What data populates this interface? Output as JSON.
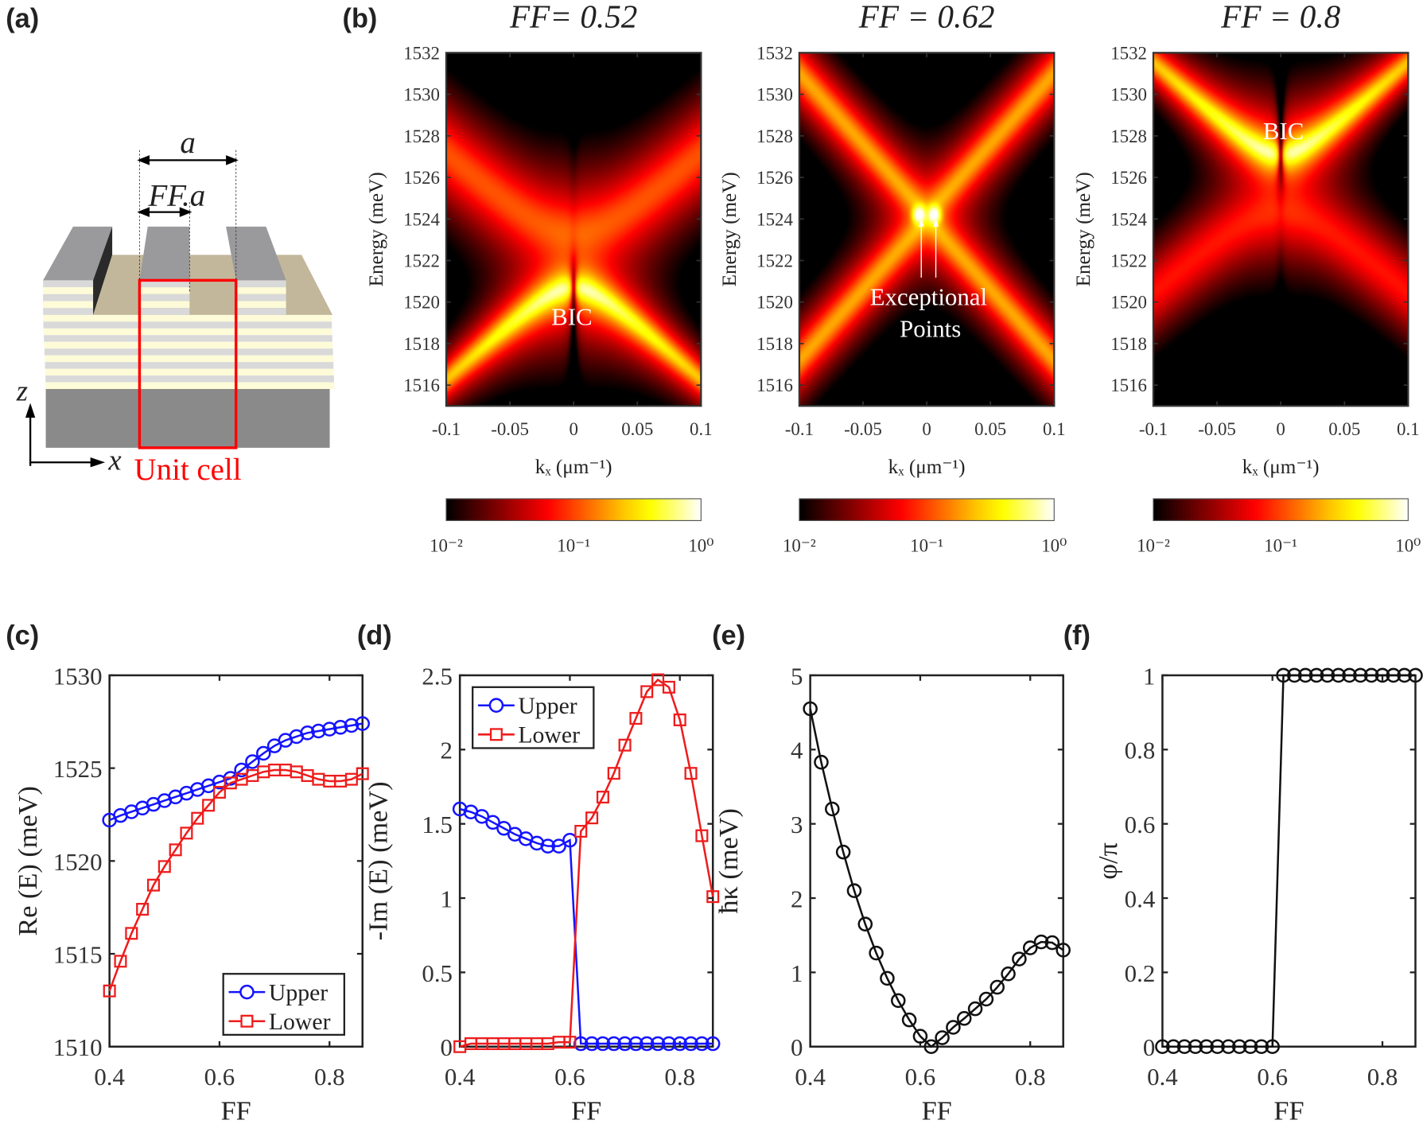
{
  "panel_labels": {
    "a": "(a)",
    "b": "(b)",
    "c": "(c)",
    "d": "(d)",
    "e": "(e)",
    "f": "(f)"
  },
  "schematic": {
    "period_label": "a",
    "fill_factor_label": "FF.a",
    "z_axis_label": "z",
    "x_axis_label": "x",
    "unit_cell_label": "Unit cell",
    "colors": {
      "ridge": "#9a9a9c",
      "ridge_side": "#2a2a2a",
      "top_surface": "#c2b79a",
      "layer_light": "#fdfbd8",
      "layer_grey": "#d9d9d9",
      "substrate": "#8a8a8a",
      "unit_cell": "#ff0000"
    }
  },
  "chart_data": [
    {
      "type": "heatmap",
      "title": "FF= 0.52",
      "xlabel": "kₓ (μm⁻¹)",
      "ylabel": "Energy (meV)",
      "xlim": [
        -0.1,
        0.1
      ],
      "ylim": [
        1515,
        1532
      ],
      "xticks": [
        -0.1,
        -0.05,
        0,
        0.05,
        0.1
      ],
      "yticks": [
        1516,
        1518,
        1520,
        1522,
        1524,
        1526,
        1528,
        1530,
        1532
      ],
      "colormap": "hot",
      "colorbar": {
        "scale": "log",
        "range": [
          0.01,
          1
        ],
        "tick_labels": [
          "10⁻²",
          "10⁻¹",
          "10⁰"
        ]
      },
      "annotations": [
        "BIC"
      ]
    },
    {
      "type": "heatmap",
      "title": "FF = 0.62",
      "xlabel": "kₓ (μm⁻¹)",
      "ylabel": "Energy (meV)",
      "xlim": [
        -0.1,
        0.1
      ],
      "ylim": [
        1515,
        1532
      ],
      "xticks": [
        -0.1,
        -0.05,
        0,
        0.05,
        0.1
      ],
      "yticks": [
        1516,
        1518,
        1520,
        1522,
        1524,
        1526,
        1528,
        1530,
        1532
      ],
      "colormap": "hot",
      "colorbar": {
        "scale": "log",
        "range": [
          0.01,
          1
        ],
        "tick_labels": [
          "10⁻²",
          "10⁻¹",
          "10⁰"
        ]
      },
      "annotations": [
        "Exceptional",
        "Points"
      ]
    },
    {
      "type": "heatmap",
      "title": "FF = 0.8",
      "xlabel": "kₓ (μm⁻¹)",
      "ylabel": "Energy (meV)",
      "xlim": [
        -0.1,
        0.1
      ],
      "ylim": [
        1515,
        1532
      ],
      "xticks": [
        -0.1,
        -0.05,
        0,
        0.05,
        0.1
      ],
      "yticks": [
        1516,
        1518,
        1520,
        1522,
        1524,
        1526,
        1528,
        1530,
        1532
      ],
      "colormap": "hot",
      "colorbar": {
        "scale": "log",
        "range": [
          0.01,
          1
        ],
        "tick_labels": [
          "10⁻²",
          "10⁻¹",
          "10⁰"
        ]
      },
      "annotations": [
        "BIC"
      ]
    },
    {
      "type": "line",
      "xlabel": "FF",
      "ylabel": "Re (E) (meV)",
      "xlim": [
        0.4,
        0.86
      ],
      "ylim": [
        1510,
        1530
      ],
      "xticks": [
        0.4,
        0.6,
        0.8
      ],
      "yticks": [
        1510,
        1515,
        1520,
        1525,
        1530
      ],
      "legend": "bottom-right",
      "x": [
        0.4,
        0.42,
        0.44,
        0.46,
        0.48,
        0.5,
        0.52,
        0.54,
        0.56,
        0.58,
        0.6,
        0.62,
        0.64,
        0.66,
        0.68,
        0.7,
        0.72,
        0.74,
        0.76,
        0.78,
        0.8,
        0.82,
        0.84,
        0.86
      ],
      "series": [
        {
          "name": "Upper",
          "color": "#1414ff",
          "marker": "circle",
          "values": [
            1522.2,
            1522.45,
            1522.65,
            1522.85,
            1523.05,
            1523.25,
            1523.45,
            1523.65,
            1523.85,
            1524.05,
            1524.25,
            1524.45,
            1524.9,
            1525.35,
            1525.8,
            1526.2,
            1526.5,
            1526.7,
            1526.9,
            1527.0,
            1527.1,
            1527.2,
            1527.3,
            1527.4
          ]
        },
        {
          "name": "Lower",
          "color": "#ee1c1c",
          "marker": "square",
          "values": [
            1513.0,
            1514.6,
            1516.1,
            1517.4,
            1518.7,
            1519.7,
            1520.6,
            1521.5,
            1522.3,
            1523.0,
            1523.7,
            1524.2,
            1524.4,
            1524.6,
            1524.8,
            1524.9,
            1524.9,
            1524.8,
            1524.6,
            1524.4,
            1524.3,
            1524.3,
            1524.4,
            1524.7
          ]
        }
      ]
    },
    {
      "type": "line",
      "xlabel": "FF",
      "ylabel": "-Im (E) (meV)",
      "xlim": [
        0.4,
        0.86
      ],
      "ylim": [
        0,
        2.5
      ],
      "xticks": [
        0.4,
        0.6,
        0.8
      ],
      "yticks": [
        0,
        0.5,
        1,
        1.5,
        2,
        2.5
      ],
      "legend": "top-left",
      "x": [
        0.4,
        0.42,
        0.44,
        0.46,
        0.48,
        0.5,
        0.52,
        0.54,
        0.56,
        0.58,
        0.6,
        0.62,
        0.64,
        0.66,
        0.68,
        0.7,
        0.72,
        0.74,
        0.76,
        0.78,
        0.8,
        0.82,
        0.84,
        0.86
      ],
      "series": [
        {
          "name": "Upper",
          "color": "#1414ff",
          "marker": "circle",
          "values": [
            1.6,
            1.58,
            1.55,
            1.51,
            1.47,
            1.43,
            1.4,
            1.37,
            1.35,
            1.35,
            1.39,
            0.02,
            0.02,
            0.02,
            0.02,
            0.02,
            0.02,
            0.02,
            0.02,
            0.02,
            0.02,
            0.02,
            0.02,
            0.02
          ]
        },
        {
          "name": "Lower",
          "color": "#ee1c1c",
          "marker": "square",
          "values": [
            0.0,
            0.02,
            0.02,
            0.02,
            0.02,
            0.02,
            0.02,
            0.02,
            0.02,
            0.03,
            0.03,
            1.45,
            1.54,
            1.68,
            1.84,
            2.03,
            2.21,
            2.39,
            2.47,
            2.42,
            2.2,
            1.84,
            1.42,
            1.01
          ]
        }
      ]
    },
    {
      "type": "line",
      "xlabel": "FF",
      "ylabel": "ħκ (meV)",
      "xlim": [
        0.4,
        0.86
      ],
      "ylim": [
        0,
        5
      ],
      "xticks": [
        0.4,
        0.6,
        0.8
      ],
      "yticks": [
        0,
        1,
        2,
        3,
        4,
        5
      ],
      "x": [
        0.4,
        0.42,
        0.44,
        0.46,
        0.48,
        0.5,
        0.52,
        0.54,
        0.56,
        0.58,
        0.6,
        0.62,
        0.64,
        0.66,
        0.68,
        0.7,
        0.72,
        0.74,
        0.76,
        0.78,
        0.8,
        0.82,
        0.84,
        0.86
      ],
      "series": [
        {
          "color": "#111111",
          "marker": "circle",
          "values": [
            4.55,
            3.83,
            3.2,
            2.62,
            2.1,
            1.65,
            1.26,
            0.92,
            0.62,
            0.36,
            0.14,
            0.0,
            0.12,
            0.26,
            0.38,
            0.51,
            0.64,
            0.8,
            0.98,
            1.18,
            1.33,
            1.41,
            1.4,
            1.3
          ]
        }
      ]
    },
    {
      "type": "line",
      "xlabel": "FF",
      "ylabel": "φ/π",
      "xlim": [
        0.4,
        0.86
      ],
      "ylim": [
        0,
        1
      ],
      "xticks": [
        0.4,
        0.6,
        0.8
      ],
      "yticks": [
        0,
        0.2,
        0.4,
        0.6,
        0.8,
        1
      ],
      "x": [
        0.4,
        0.42,
        0.44,
        0.46,
        0.48,
        0.5,
        0.52,
        0.54,
        0.56,
        0.58,
        0.6,
        0.62,
        0.64,
        0.66,
        0.68,
        0.7,
        0.72,
        0.74,
        0.76,
        0.78,
        0.8,
        0.82,
        0.84,
        0.86
      ],
      "series": [
        {
          "color": "#111111",
          "marker": "circle",
          "values": [
            0,
            0,
            0,
            0,
            0,
            0,
            0,
            0,
            0,
            0,
            0,
            1,
            1,
            1,
            1,
            1,
            1,
            1,
            1,
            1,
            1,
            1,
            1,
            1
          ]
        }
      ]
    }
  ]
}
